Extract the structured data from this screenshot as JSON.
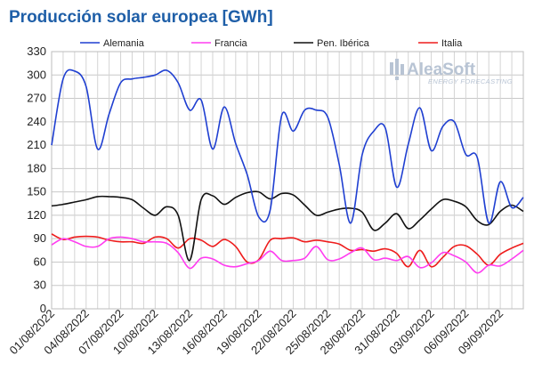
{
  "chart_data": {
    "type": "line",
    "title": "Producción solar europea [GWh]",
    "xlabel": "",
    "ylabel": "",
    "ylim": [
      0,
      330
    ],
    "yticks": [
      0,
      30,
      60,
      90,
      120,
      150,
      180,
      210,
      240,
      270,
      300,
      330
    ],
    "grid": true,
    "legend_position": "top",
    "x_tick_labels": [
      "01/08/2022",
      "04/08/2022",
      "07/08/2022",
      "10/08/2022",
      "13/08/2022",
      "16/08/2022",
      "19/08/2022",
      "22/08/2022",
      "25/08/2022",
      "28/08/2022",
      "31/08/2022",
      "03/09/2022",
      "06/09/2022",
      "09/09/2022"
    ],
    "x": [
      "01/08/2022",
      "02/08/2022",
      "03/08/2022",
      "04/08/2022",
      "05/08/2022",
      "06/08/2022",
      "07/08/2022",
      "08/08/2022",
      "09/08/2022",
      "10/08/2022",
      "11/08/2022",
      "12/08/2022",
      "13/08/2022",
      "14/08/2022",
      "15/08/2022",
      "16/08/2022",
      "17/08/2022",
      "18/08/2022",
      "19/08/2022",
      "20/08/2022",
      "21/08/2022",
      "22/08/2022",
      "23/08/2022",
      "24/08/2022",
      "25/08/2022",
      "26/08/2022",
      "27/08/2022",
      "28/08/2022",
      "29/08/2022",
      "30/08/2022",
      "31/08/2022",
      "01/09/2022",
      "02/09/2022",
      "03/09/2022",
      "04/09/2022",
      "05/09/2022",
      "06/09/2022",
      "07/09/2022",
      "08/09/2022",
      "09/09/2022",
      "10/09/2022",
      "11/09/2022"
    ],
    "series": [
      {
        "name": "Alemania",
        "color": "#1f3fd1",
        "values": [
          210,
          295,
          305,
          285,
          205,
          250,
          290,
          295,
          297,
          300,
          306,
          290,
          255,
          268,
          205,
          259,
          212,
          172,
          118,
          127,
          248,
          228,
          255,
          255,
          246,
          185,
          110,
          198,
          228,
          232,
          156,
          211,
          258,
          203,
          234,
          240,
          198,
          194,
          110,
          163,
          130,
          143
        ]
      },
      {
        "name": "Francia",
        "color": "#ff3df0",
        "values": [
          82,
          90,
          86,
          80,
          80,
          90,
          92,
          90,
          86,
          86,
          84,
          72,
          52,
          65,
          64,
          56,
          54,
          58,
          62,
          74,
          62,
          62,
          65,
          80,
          63,
          64,
          72,
          78,
          63,
          65,
          62,
          67,
          53,
          59,
          72,
          68,
          60,
          46,
          56,
          55,
          64,
          75
        ]
      },
      {
        "name": "Pen. Ibérica",
        "color": "#111111",
        "values": [
          132,
          134,
          137,
          140,
          144,
          144,
          143,
          140,
          129,
          120,
          131,
          120,
          62,
          140,
          145,
          134,
          143,
          149,
          150,
          141,
          148,
          146,
          133,
          120,
          124,
          128,
          129,
          124,
          101,
          110,
          122,
          103,
          114,
          128,
          140,
          138,
          131,
          113,
          108,
          125,
          133,
          125
        ]
      },
      {
        "name": "Italia",
        "color": "#ee1c1c",
        "values": [
          96,
          89,
          92,
          93,
          92,
          88,
          86,
          86,
          84,
          92,
          90,
          78,
          90,
          88,
          80,
          89,
          80,
          60,
          63,
          88,
          90,
          91,
          86,
          88,
          86,
          83,
          75,
          76,
          74,
          77,
          71,
          54,
          75,
          54,
          66,
          80,
          81,
          70,
          56,
          70,
          78,
          84
        ]
      }
    ]
  },
  "logo": {
    "name": "AleaSoft",
    "tagline": "ENERGY FORECASTING"
  }
}
